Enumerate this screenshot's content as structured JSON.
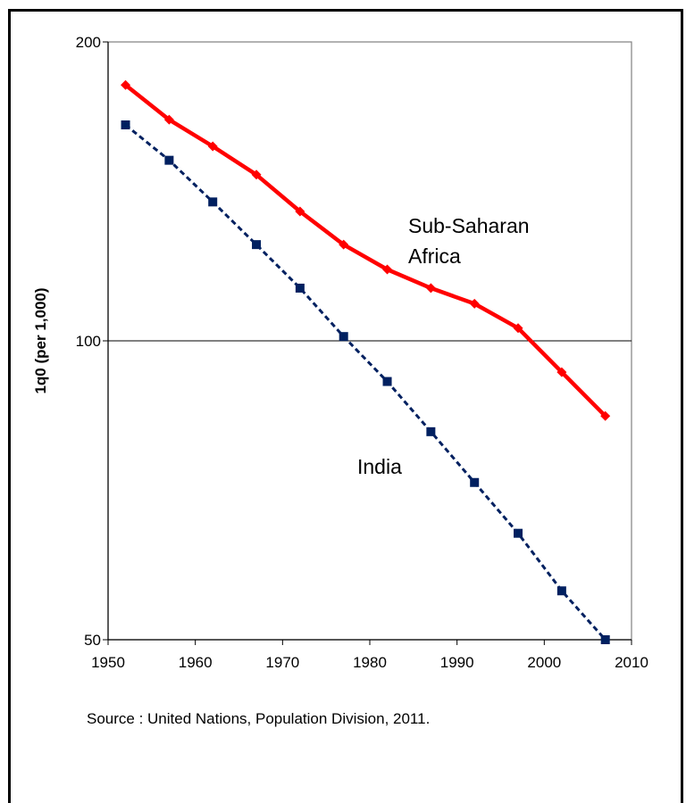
{
  "chart_data": {
    "type": "line",
    "title": "",
    "xlabel": "",
    "ylabel": "1q0 (per 1,000)",
    "yscale": "log",
    "ylim": [
      50,
      200
    ],
    "xlim": [
      1950,
      2010
    ],
    "yticks": [
      50,
      100,
      200
    ],
    "xticks": [
      1950,
      1960,
      1970,
      1980,
      1990,
      2000,
      2010
    ],
    "ytick_labels": [
      "50",
      "100",
      "200"
    ],
    "xtick_labels": [
      "1950",
      "1960",
      "1970",
      "1980",
      "1990",
      "2000",
      "2010"
    ],
    "reference_line": 100,
    "grid": false,
    "x": [
      1952,
      1957,
      1962,
      1967,
      1972,
      1977,
      1982,
      1987,
      1992,
      1997,
      2002,
      2007
    ],
    "series": [
      {
        "name": "Sub-Saharan Africa",
        "label_lines": [
          "Sub-Saharan",
          "Africa"
        ],
        "color": "#ff0000",
        "line_style": "solid",
        "marker": "diamond",
        "values": [
          181,
          167,
          157,
          147,
          135,
          125,
          118,
          113,
          109,
          103,
          93,
          84
        ]
      },
      {
        "name": "India",
        "label_lines": [
          "India"
        ],
        "color": "#002060",
        "line_style": "dashed",
        "marker": "square",
        "values": [
          165,
          152,
          138,
          125,
          113,
          101,
          91,
          81,
          72,
          64,
          56,
          50
        ]
      }
    ],
    "annotations": [
      "Source : United Nations, Population Division, 2011."
    ]
  }
}
